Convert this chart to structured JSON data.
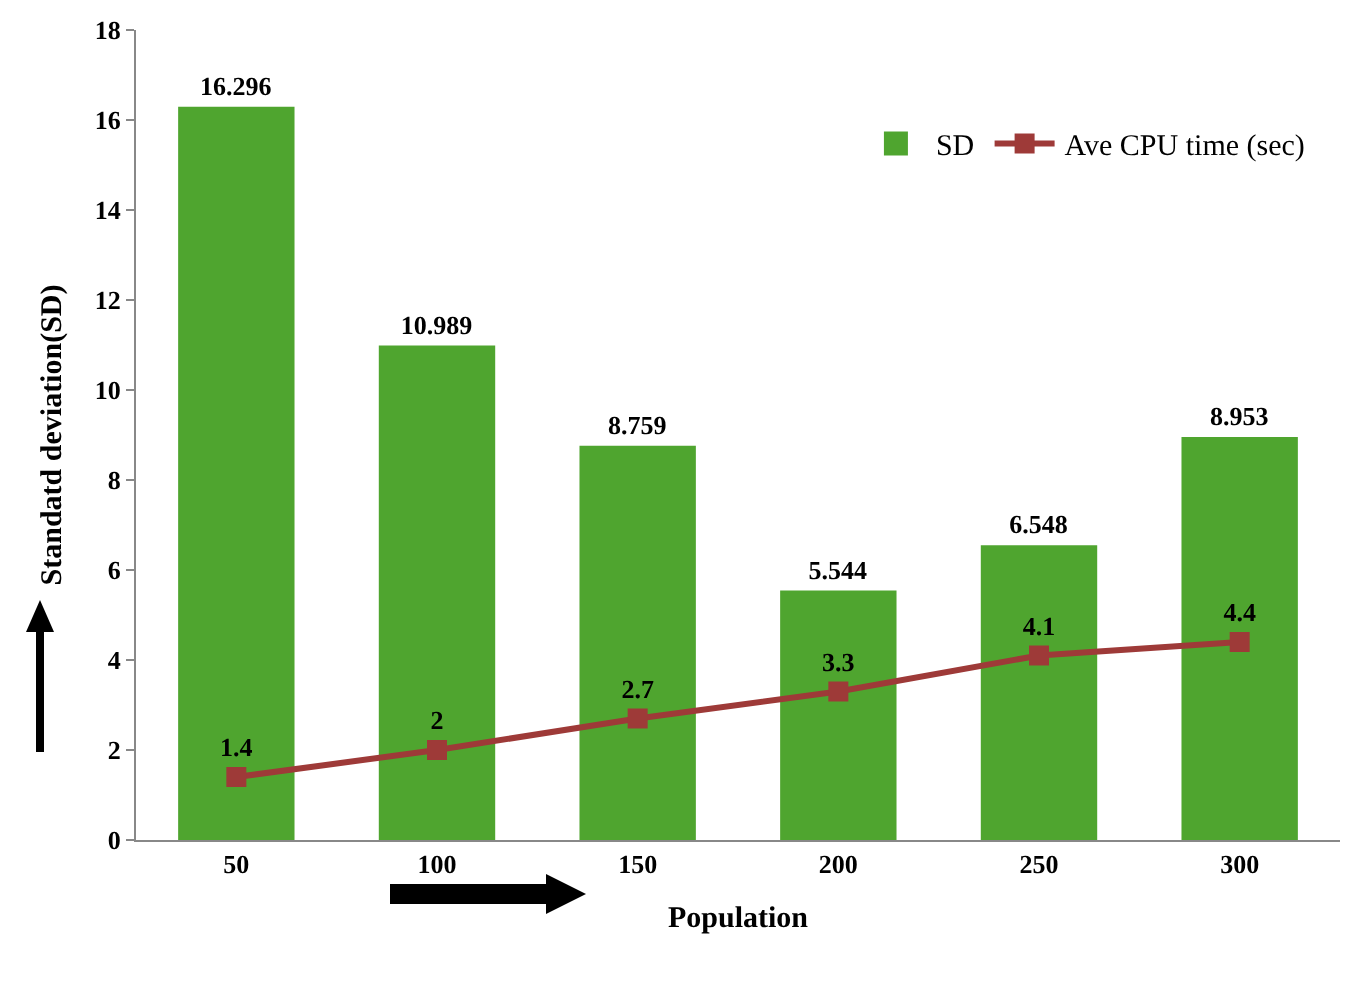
{
  "chart_data": {
    "type": "bar",
    "xlabel": "Population",
    "ylabel": "Standatd deviation(SD)",
    "categories": [
      "50",
      "100",
      "150",
      "200",
      "250",
      "300"
    ],
    "series": [
      {
        "name": "SD",
        "color": "#4fa52f",
        "values": [
          16.296,
          10.989,
          8.759,
          5.544,
          6.548,
          8.953
        ]
      },
      {
        "name": "Ave CPU time (sec)",
        "type": "line",
        "color": "#9e3a38",
        "marker": "square",
        "values": [
          1.4,
          2,
          2.7,
          3.3,
          4.1,
          4.4
        ]
      }
    ],
    "ylim": [
      0,
      18
    ],
    "yticks": [
      0,
      2,
      4,
      6,
      8,
      10,
      12,
      14,
      16,
      18
    ],
    "grid": false,
    "legend": "top right",
    "data_labels": true
  }
}
